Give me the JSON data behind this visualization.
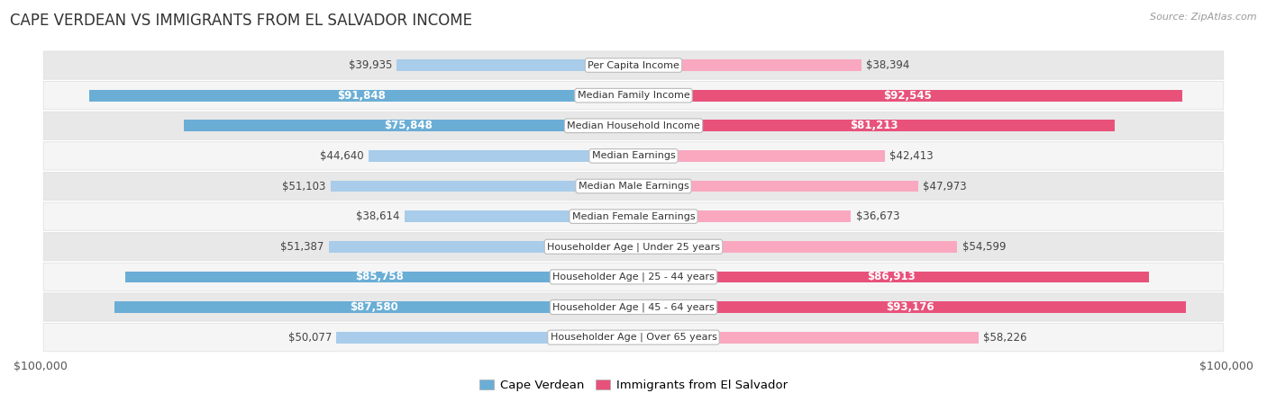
{
  "title": "CAPE VERDEAN VS IMMIGRANTS FROM EL SALVADOR INCOME",
  "source": "Source: ZipAtlas.com",
  "categories": [
    "Per Capita Income",
    "Median Family Income",
    "Median Household Income",
    "Median Earnings",
    "Median Male Earnings",
    "Median Female Earnings",
    "Householder Age | Under 25 years",
    "Householder Age | 25 - 44 years",
    "Householder Age | 45 - 64 years",
    "Householder Age | Over 65 years"
  ],
  "cape_verdean": [
    39935,
    91848,
    75848,
    44640,
    51103,
    38614,
    51387,
    85758,
    87580,
    50077
  ],
  "el_salvador": [
    38394,
    92545,
    81213,
    42413,
    47973,
    36673,
    54599,
    86913,
    93176,
    58226
  ],
  "cape_verdean_labels": [
    "$39,935",
    "$91,848",
    "$75,848",
    "$44,640",
    "$51,103",
    "$38,614",
    "$51,387",
    "$85,758",
    "$87,580",
    "$50,077"
  ],
  "el_salvador_labels": [
    "$38,394",
    "$92,545",
    "$81,213",
    "$42,413",
    "$47,973",
    "$36,673",
    "$54,599",
    "$86,913",
    "$93,176",
    "$58,226"
  ],
  "max_value": 100000,
  "color_cv_light": "#A8CCEA",
  "color_cv_dark": "#6AAED6",
  "color_es_light": "#F9A8C0",
  "color_es_dark": "#E8527A",
  "bg_color": "#FFFFFF",
  "row_bg_light": "#F5F5F5",
  "row_bg_dark": "#E8E8E8",
  "threshold": 60000,
  "label_fontsize": 8.5,
  "title_fontsize": 12,
  "cat_fontsize": 8,
  "legend_fontsize": 9.5
}
